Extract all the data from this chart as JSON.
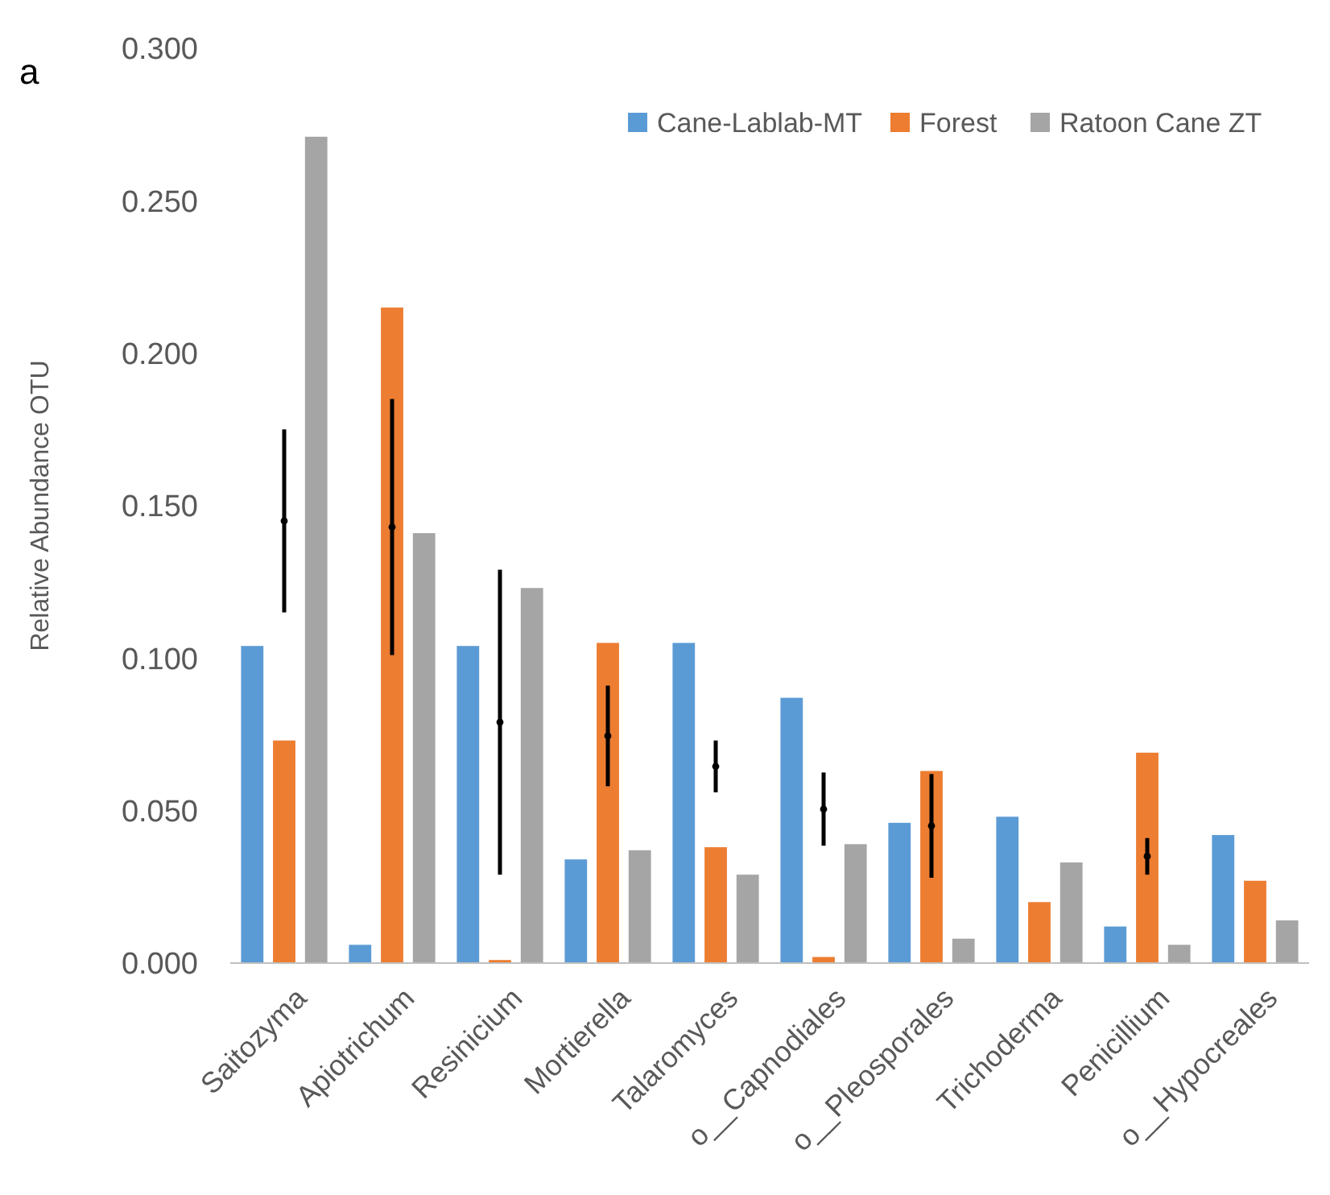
{
  "chart_data": {
    "type": "bar",
    "ylabel": "Relative Abundance OTU",
    "annotations": [
      "a"
    ],
    "categories": [
      "Saitozyma",
      "Apiotrichum",
      "Resinicium",
      "Mortierella",
      "Talaromyces",
      "o__Capnodiales",
      "o__Pleosporales",
      "Trichoderma",
      "Penicillium",
      "o__Hypocreales"
    ],
    "series": [
      {
        "name": "Cane-Lablab-MT",
        "color": "#5b9bd5",
        "values": [
          0.104,
          0.006,
          0.104,
          0.034,
          0.105,
          0.087,
          0.046,
          0.048,
          0.012,
          0.042
        ]
      },
      {
        "name": "Forest",
        "color": "#ed7d31",
        "values": [
          0.073,
          0.215,
          0.001,
          0.105,
          0.038,
          0.002,
          0.063,
          0.02,
          0.069,
          0.027
        ]
      },
      {
        "name": "Ratoon Cane ZT",
        "color": "#a5a5a5",
        "values": [
          0.271,
          0.141,
          0.123,
          0.037,
          0.029,
          0.039,
          0.008,
          0.033,
          0.006,
          0.014
        ]
      },
      {
        "type": "scatter",
        "marker": "circle",
        "color": "#000000",
        "values": [
          0.145,
          0.143,
          0.079,
          0.0745,
          0.0645,
          0.0505,
          0.045,
          null,
          0.035,
          null
        ],
        "errors": [
          0.03,
          0.042,
          0.05,
          0.0165,
          0.0085,
          0.012,
          0.017,
          null,
          0.006,
          null
        ]
      }
    ],
    "ylim": [
      0,
      0.3
    ],
    "yticks": [
      {
        "value": 0,
        "label": "0.000"
      },
      {
        "value": 0.05,
        "label": "0.050"
      },
      {
        "value": 0.1,
        "label": "0.100"
      },
      {
        "value": 0.15,
        "label": "0.150"
      },
      {
        "value": 0.2,
        "label": "0.200"
      },
      {
        "value": 0.25,
        "label": "0.250"
      },
      {
        "value": 0.3,
        "label": "0.300"
      }
    ],
    "grid": false,
    "legend": "top right"
  }
}
